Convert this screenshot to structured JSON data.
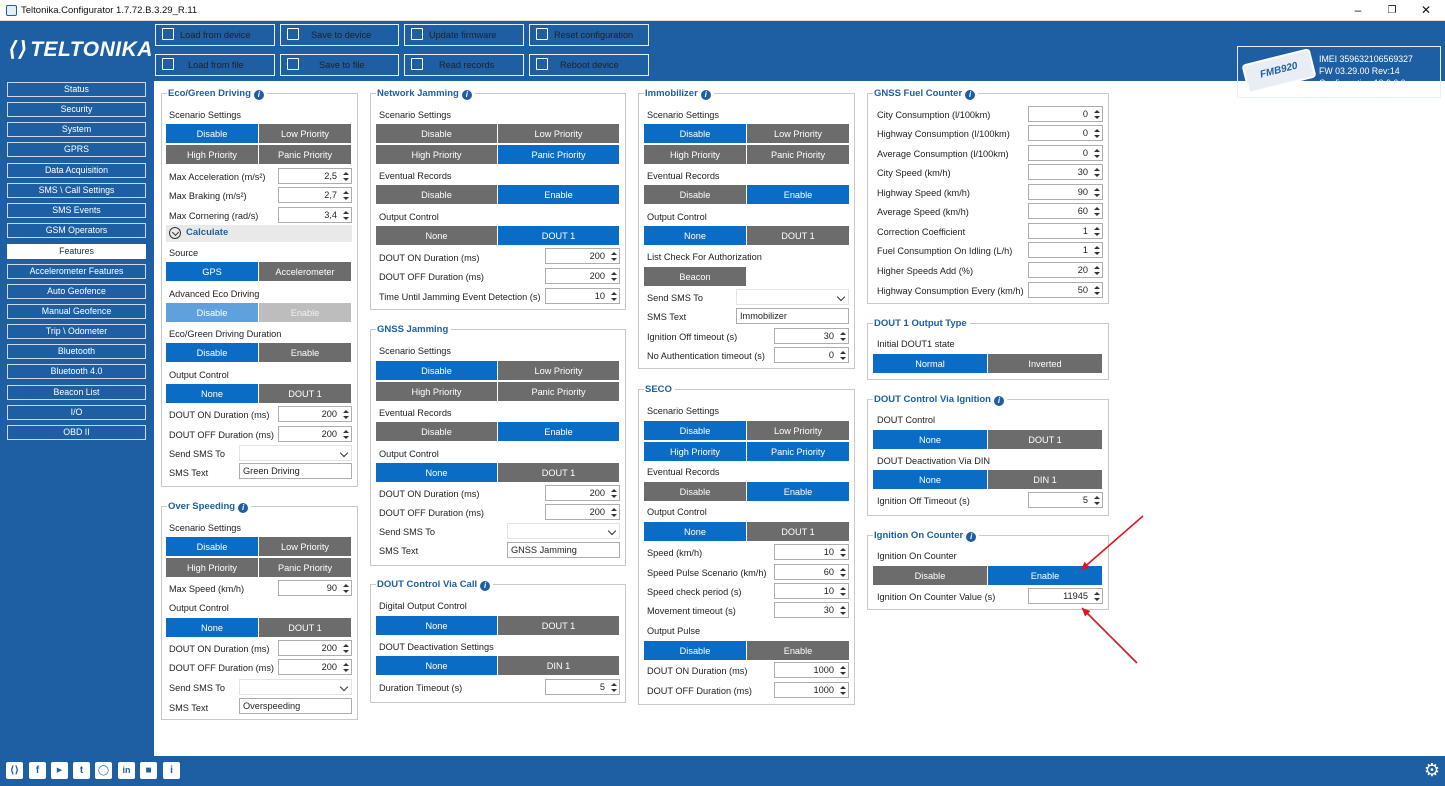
{
  "window": {
    "title": "Teltonika.Configurator 1.7.72.B.3.29_R.11"
  },
  "brand": {
    "logo_text": "TELTONIKA"
  },
  "toolbar": {
    "load_from_device": "Load from device",
    "save_to_device": "Save to device",
    "update_firmware": "Update firmware",
    "reset_configuration": "Reset configuration",
    "load_from_file": "Load from file",
    "save_to_file": "Save to file",
    "read_records": "Read records",
    "reboot_device": "Reboot device"
  },
  "device": {
    "model": "FMB920",
    "imei": "IMEI 359632106569327",
    "fw": "FW 03.29.00 Rev:14",
    "configuration": "Configuration 10.0.0.0"
  },
  "sidebar": {
    "active": "Features",
    "items": [
      "Status",
      "Security",
      "System",
      "GPRS",
      "Data Acquisition",
      "SMS \\ Call Settings",
      "SMS Events",
      "GSM Operators",
      "Features",
      "Accelerometer Features",
      "Auto Geofence",
      "Manual Geofence",
      "Trip \\ Odometer",
      "Bluetooth",
      "Bluetooth 4.0",
      "Beacon List",
      "I/O",
      "OBD II"
    ]
  },
  "common": {
    "disable": "Disable",
    "enable": "Enable",
    "low_priority": "Low Priority",
    "high_priority": "High Priority",
    "panic_priority": "Panic Priority",
    "none": "None",
    "dout1": "DOUT 1",
    "din1": "DIN 1",
    "scenario_settings": "Scenario Settings",
    "eventual_records": "Eventual Records",
    "output_control": "Output Control",
    "dout_on_duration": "DOUT ON Duration   (ms)",
    "dout_off_duration": "DOUT OFF Duration   (ms)",
    "send_sms_to": "Send SMS To",
    "sms_text": "SMS Text"
  },
  "eco": {
    "title": "Eco/Green Driving",
    "max_accel_label": "Max Acceleration  (m/s²)",
    "max_accel": "2,5",
    "max_braking_label": "Max Braking  (m/s²)",
    "max_braking": "2,7",
    "max_cornering_label": "Max Cornering  (rad/s)",
    "max_cornering": "3,4",
    "calculate": "Calculate",
    "source_label": "Source",
    "gps": "GPS",
    "accelerometer": "Accelerometer",
    "advanced_label": "Advanced Eco Driving",
    "duration_label": "Eco/Green Driving Duration",
    "dout_on": "200",
    "dout_off": "200",
    "sms_text": "Green Driving"
  },
  "overspeeding": {
    "title": "Over Speeding",
    "max_speed_label": "Max Speed  (km/h)",
    "max_speed": "90",
    "dout_on": "200",
    "dout_off": "200",
    "sms_text": "Overspeeding"
  },
  "network_jamming": {
    "title": "Network Jamming",
    "dout_on": "200",
    "dout_off": "200",
    "time_until_label": "Time Until Jamming Event Detection   (s)",
    "time_until": "10"
  },
  "gnss_jamming": {
    "title": "GNSS Jamming",
    "dout_on": "200",
    "dout_off": "200",
    "sms_text": "GNSS Jamming"
  },
  "dout_via_call": {
    "title": "DOUT Control Via Call",
    "digital_output_label": "Digital Output Control",
    "deactivation_label": "DOUT Deactivation Settings",
    "duration_timeout_label": "Duration Timeout   (s)",
    "duration_timeout": "5"
  },
  "immobilizer": {
    "title": "Immobilizer",
    "list_check_label": "List Check For Authorization",
    "beacon": "Beacon",
    "sms_text": "Immobilizer",
    "ign_off_timeout_label": "Ignition Off timeout   (s)",
    "ign_off_timeout": "30",
    "no_auth_timeout_label": "No Authentication timeout   (s)",
    "no_auth_timeout": "0"
  },
  "seco": {
    "title": "SECO",
    "speed_label": "Speed  (km/h)",
    "speed": "10",
    "pulse_label": "Speed Pulse Scenario  (km/h)",
    "pulse": "60",
    "check_period_label": "Speed check period  (s)",
    "check_period": "10",
    "movement_timeout_label": "Movement timeout  (s)",
    "movement_timeout": "30",
    "output_pulse_label": "Output Pulse",
    "dout_on": "1000",
    "dout_off": "1000"
  },
  "gnss_fuel": {
    "title": "GNSS Fuel Counter",
    "rows": [
      {
        "label": "City Consumption  (l/100km)",
        "value": "0"
      },
      {
        "label": "Highway Consumption  (l/100km)",
        "value": "0"
      },
      {
        "label": "Average Consumption  (l/100km)",
        "value": "0"
      },
      {
        "label": "City Speed  (km/h)",
        "value": "30"
      },
      {
        "label": "Highway Speed  (km/h)",
        "value": "90"
      },
      {
        "label": "Average Speed  (km/h)",
        "value": "60"
      },
      {
        "label": "Correction Coefficient",
        "value": "1"
      },
      {
        "label": "Fuel Consumption On Idling  (L/h)",
        "value": "1"
      },
      {
        "label": "Higher Speeds Add  (%)",
        "value": "20"
      },
      {
        "label": "Highway Consumption Every  (km/h)",
        "value": "50"
      }
    ]
  },
  "dout1_output_type": {
    "title": "DOUT 1 Output Type",
    "initial_label": "Initial DOUT1 state",
    "normal": "Normal",
    "inverted": "Inverted"
  },
  "dout_via_ignition": {
    "title": "DOUT Control Via Ignition",
    "dout_control_label": "DOUT Control",
    "deactivation_label": "DOUT Deactivation Via DIN",
    "ign_off_timeout_label": "Ignition Off Timeout  (s)",
    "ign_off_timeout": "5"
  },
  "ignition_counter": {
    "title": "Ignition On Counter",
    "counter_label": "Ignition On Counter",
    "value_label": "Ignition On Counter Value  (s)",
    "value": "11945"
  },
  "annotation": {
    "arrow_color": "#e0141e"
  }
}
